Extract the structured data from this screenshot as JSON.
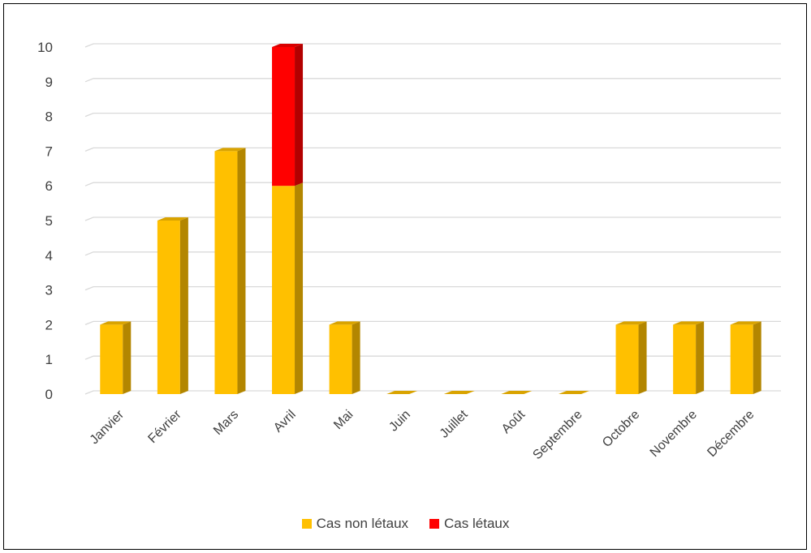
{
  "chart_data": {
    "type": "bar",
    "stacked": true,
    "style": "3d-column",
    "categories": [
      "Janvier",
      "Février",
      "Mars",
      "Avril",
      "Mai",
      "Juin",
      "Juillet",
      "Août",
      "Septembre",
      "Octobre",
      "Novembre",
      "Décembre"
    ],
    "series": [
      {
        "name": "Cas non létaux",
        "color": "#FFC000",
        "values": [
          2,
          5,
          7,
          6,
          2,
          0,
          0,
          0,
          0,
          2,
          2,
          2
        ]
      },
      {
        "name": "Cas létaux",
        "color": "#FF0000",
        "values": [
          0,
          0,
          0,
          4,
          0,
          0,
          0,
          0,
          0,
          0,
          0,
          0
        ]
      }
    ],
    "ylim": [
      0,
      10
    ],
    "yticks": [
      "0",
      "1",
      "2",
      "3",
      "4",
      "5",
      "6",
      "7",
      "8",
      "9",
      "10"
    ],
    "grid": true,
    "legend_position": "bottom"
  }
}
